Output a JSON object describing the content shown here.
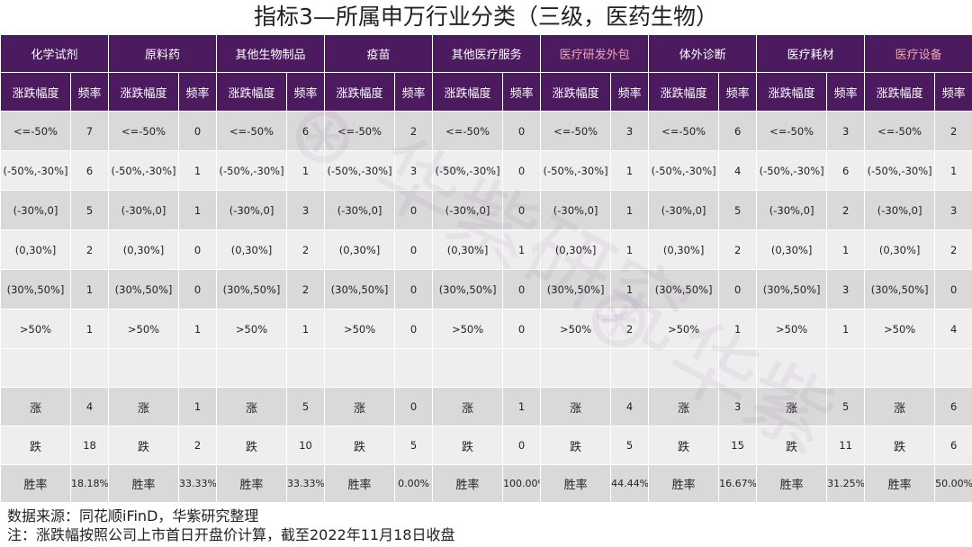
{
  "title": "指标3—所属申万行业分类（三级，医药生物）",
  "sub_headers": {
    "range": "涨跌幅度",
    "freq": "频率"
  },
  "categories": [
    {
      "name": "化学试剂",
      "highlight": false
    },
    {
      "name": "原料药",
      "highlight": false
    },
    {
      "name": "其他生物制品",
      "highlight": false
    },
    {
      "name": "疫苗",
      "highlight": false
    },
    {
      "name": "其他医疗服务",
      "highlight": false
    },
    {
      "name": "医疗研发外包",
      "highlight": true
    },
    {
      "name": "体外诊断",
      "highlight": false
    },
    {
      "name": "医疗耗材",
      "highlight": false
    },
    {
      "name": "医疗设备",
      "highlight": true
    }
  ],
  "ranges": [
    "<=-50%",
    "(-50%,-30%]",
    "(-30%,0]",
    "(0,30%]",
    "(30%,50%]",
    ">50%"
  ],
  "freq": [
    [
      7,
      0,
      6,
      2,
      0,
      3,
      6,
      3,
      2
    ],
    [
      6,
      1,
      1,
      3,
      0,
      1,
      4,
      6,
      1
    ],
    [
      5,
      1,
      3,
      0,
      0,
      1,
      5,
      2,
      3
    ],
    [
      2,
      0,
      2,
      0,
      1,
      1,
      2,
      1,
      2
    ],
    [
      1,
      0,
      2,
      0,
      0,
      1,
      0,
      3,
      0
    ],
    [
      1,
      1,
      1,
      0,
      0,
      2,
      1,
      1,
      4
    ]
  ],
  "summary_labels": {
    "up": "涨",
    "down": "跌",
    "win": "胜率"
  },
  "up": [
    4,
    1,
    5,
    0,
    1,
    4,
    3,
    5,
    6
  ],
  "down": [
    18,
    2,
    10,
    5,
    0,
    5,
    15,
    11,
    6
  ],
  "win_rate": [
    "18.18%",
    "33.33%",
    "33.33%",
    "0.00%",
    "100.00%",
    "44.44%",
    "16.67%",
    "31.25%",
    "50.00%"
  ],
  "footnotes": {
    "source": "数据来源：同花顺iFinD，华紫研究整理",
    "note": "注：涨跌幅按照公司上市首日开盘价计算，截至2022年11月18日收盘"
  },
  "watermark_text": "华紫研究"
}
